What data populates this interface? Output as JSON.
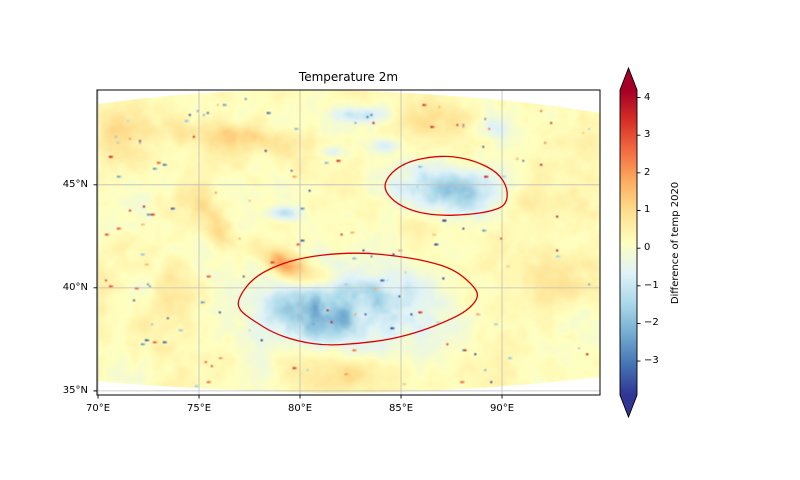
{
  "chart_data": {
    "type": "heatmap",
    "title": "Temperature 2m",
    "projection": "curvilinear lat-lon map",
    "x_axis": {
      "tick_values": [
        70,
        75,
        80,
        85,
        90
      ],
      "tick_labels": [
        "70°E",
        "75°E",
        "80°E",
        "85°E",
        "90°E"
      ],
      "range": [
        69.95,
        94.85
      ]
    },
    "y_axis": {
      "tick_values": [
        35,
        40,
        45
      ],
      "tick_labels": [
        "35°N",
        "40°N",
        "45°N"
      ],
      "range": [
        34.8,
        49.6
      ]
    },
    "grid": {
      "visible": true,
      "color": "#bdbdbd"
    },
    "colorbar": {
      "label": "Difference of temp 2020",
      "tick_values": [
        4,
        3,
        2,
        1,
        0,
        -1,
        -2,
        -3
      ],
      "tick_labels": [
        "4",
        "3",
        "2",
        "1",
        "0",
        "−1",
        "−2",
        "−3"
      ],
      "vmin": -3.9,
      "vmax": 4.2,
      "extend": "both",
      "colormap": "RdYlBu_r",
      "stops": [
        "#313695",
        "#4575b4",
        "#74add1",
        "#abd9e9",
        "#e0f3f8",
        "#ffffbf",
        "#fee090",
        "#fdae61",
        "#f46d43",
        "#d73027",
        "#a50026"
      ]
    },
    "field": {
      "description": "Temperature difference field, mostly near 0 (pale yellow) with warm filaments and two large cold (blue) anomalies outlined in red",
      "base_level": 0.2,
      "warm_anomalies": [
        {
          "lon": 80.1,
          "lat": 40.7,
          "sx": 1.2,
          "sy": 0.55,
          "amp": 1.7,
          "rot": -20
        },
        {
          "lon": 78.9,
          "lat": 41.4,
          "sx": 0.8,
          "sy": 0.35,
          "amp": 1.1,
          "rot": -30
        },
        {
          "lon": 76.9,
          "lat": 47.3,
          "sx": 2.3,
          "sy": 0.5,
          "amp": 0.95,
          "rot": -6
        },
        {
          "lon": 75.6,
          "lat": 43.2,
          "sx": 0.55,
          "sy": 1.3,
          "amp": 0.85,
          "rot": 28
        },
        {
          "lon": 71.3,
          "lat": 47.4,
          "sx": 1.1,
          "sy": 0.9,
          "amp": 0.7,
          "rot": 0
        },
        {
          "lon": 92.9,
          "lat": 40.8,
          "sx": 1.4,
          "sy": 1.1,
          "amp": 0.55,
          "rot": 0
        },
        {
          "lon": 82.3,
          "lat": 35.8,
          "sx": 1.7,
          "sy": 0.6,
          "amp": 0.6,
          "rot": 0
        },
        {
          "lon": 86.6,
          "lat": 48.2,
          "sx": 1.3,
          "sy": 0.5,
          "amp": 0.55,
          "rot": 0
        },
        {
          "lon": 73.6,
          "lat": 39.9,
          "sx": 0.9,
          "sy": 0.9,
          "amp": 0.5,
          "rot": 0
        },
        {
          "lon": 90.7,
          "lat": 44.0,
          "sx": 0.8,
          "sy": 0.6,
          "amp": 0.5,
          "rot": 0
        }
      ],
      "cold_anomalies": [
        {
          "lon": 87.3,
          "lat": 44.8,
          "sx": 1.9,
          "sy": 0.8,
          "amp": -1.9,
          "rot": -10
        },
        {
          "lon": 82.4,
          "lat": 39.2,
          "sx": 2.9,
          "sy": 1.35,
          "amp": -1.9,
          "rot": -7
        },
        {
          "lon": 80.4,
          "lat": 38.4,
          "sx": 1.2,
          "sy": 0.8,
          "amp": -1.2,
          "rot": -15
        },
        {
          "lon": 83.1,
          "lat": 48.4,
          "sx": 0.9,
          "sy": 0.25,
          "amp": -1.5,
          "rot": 0
        },
        {
          "lon": 79.3,
          "lat": 43.6,
          "sx": 0.55,
          "sy": 0.22,
          "amp": -1.2,
          "rot": 0
        },
        {
          "lon": 84.3,
          "lat": 46.9,
          "sx": 0.5,
          "sy": 0.22,
          "amp": -1.0,
          "rot": 0
        },
        {
          "lon": 89.6,
          "lat": 47.8,
          "sx": 0.6,
          "sy": 0.3,
          "amp": -0.8,
          "rot": 0
        },
        {
          "lon": 81.5,
          "lat": 46.6,
          "sx": 0.5,
          "sy": 0.2,
          "amp": -0.9,
          "rot": 0
        }
      ],
      "speckle_count": 130,
      "speckle_clusters": [
        [
          83.0,
          48.3
        ],
        [
          75.2,
          48.6
        ],
        [
          88.5,
          48.0
        ],
        [
          71.5,
          47.2
        ]
      ]
    },
    "contours": {
      "color": "#dd0000",
      "regions": [
        {
          "name": "north-cold-region",
          "points": [
            [
              84.1,
              44.9
            ],
            [
              84.5,
              45.6
            ],
            [
              85.3,
              46.1
            ],
            [
              86.4,
              46.35
            ],
            [
              87.5,
              46.4
            ],
            [
              88.7,
              46.15
            ],
            [
              89.8,
              45.6
            ],
            [
              90.3,
              44.8
            ],
            [
              90.2,
              44.0
            ],
            [
              89.4,
              43.7
            ],
            [
              88.3,
              43.55
            ],
            [
              86.9,
              43.5
            ],
            [
              85.6,
              43.7
            ],
            [
              84.6,
              44.2
            ]
          ]
        },
        {
          "name": "south-cold-region",
          "points": [
            [
              76.9,
              39.4
            ],
            [
              77.5,
              40.3
            ],
            [
              78.4,
              40.9
            ],
            [
              79.8,
              41.4
            ],
            [
              81.5,
              41.65
            ],
            [
              83.2,
              41.7
            ],
            [
              84.8,
              41.55
            ],
            [
              86.3,
              41.3
            ],
            [
              87.6,
              40.9
            ],
            [
              88.5,
              40.2
            ],
            [
              88.9,
              39.6
            ],
            [
              88.3,
              38.9
            ],
            [
              87.3,
              38.4
            ],
            [
              86.0,
              37.9
            ],
            [
              84.5,
              37.5
            ],
            [
              82.9,
              37.3
            ],
            [
              81.3,
              37.2
            ],
            [
              79.9,
              37.4
            ],
            [
              78.7,
              37.8
            ],
            [
              77.7,
              38.4
            ],
            [
              77.0,
              38.9
            ]
          ]
        }
      ]
    }
  }
}
